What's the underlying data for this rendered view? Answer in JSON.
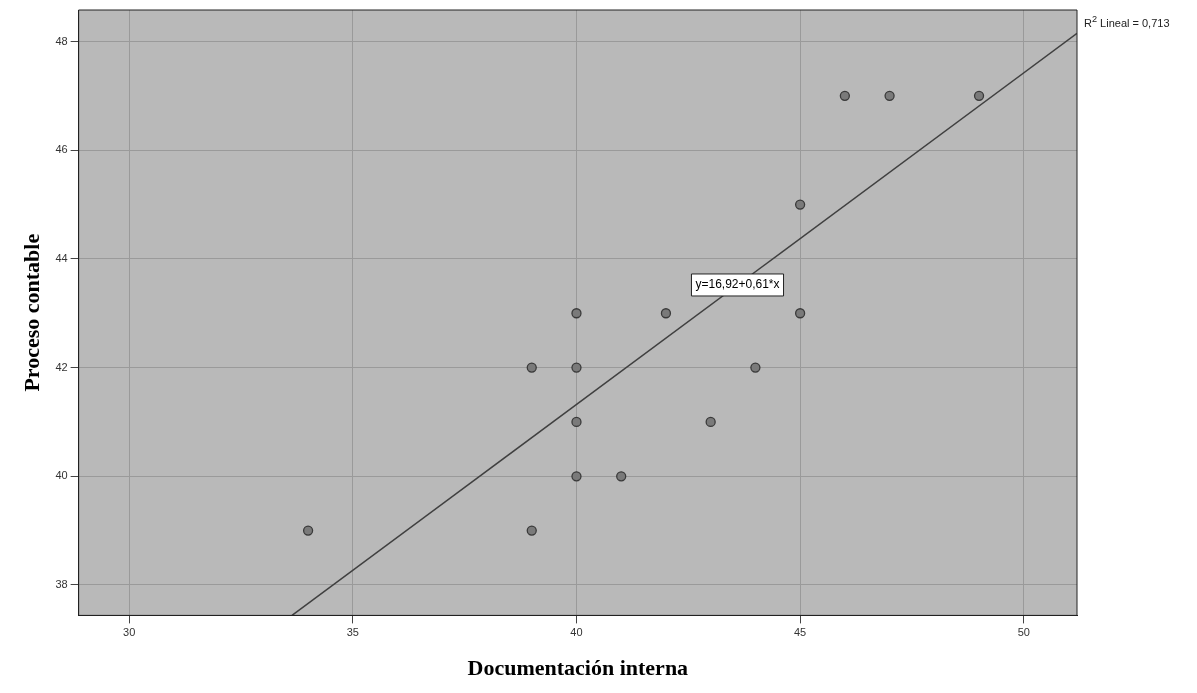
{
  "chart_data": {
    "type": "scatter",
    "xlabel": "Documentación interna",
    "ylabel": "Proceso contable",
    "xlim": [
      28.87,
      51.19
    ],
    "ylim": [
      37.44,
      48.58
    ],
    "xticks": [
      30,
      35,
      40,
      45,
      50
    ],
    "yticks": [
      38,
      40,
      42,
      44,
      46,
      48
    ],
    "grid": true,
    "legend": false,
    "marker": "circle",
    "series": [
      {
        "color": "#7a7a7a",
        "x": [
          34,
          39,
          39,
          40,
          40,
          40,
          40,
          41,
          42,
          43,
          44,
          45,
          45,
          46,
          47,
          49
        ],
        "values": [
          39,
          39,
          42,
          43,
          42,
          41,
          40,
          40,
          43,
          41,
          42,
          45,
          43,
          47,
          47,
          47
        ]
      },
      {
        "type": "line",
        "color": "#404040",
        "x": [
          33.64,
          51.19
        ],
        "values": [
          37.44,
          48.15
        ],
        "line_style": "solid",
        "marker": "none"
      }
    ],
    "annotations": [
      {
        "text": "y=16,92+0,61*x",
        "x": 43.6,
        "y": 43.52
      },
      "R$^{2}$ Lineal = 0,713"
    ]
  }
}
